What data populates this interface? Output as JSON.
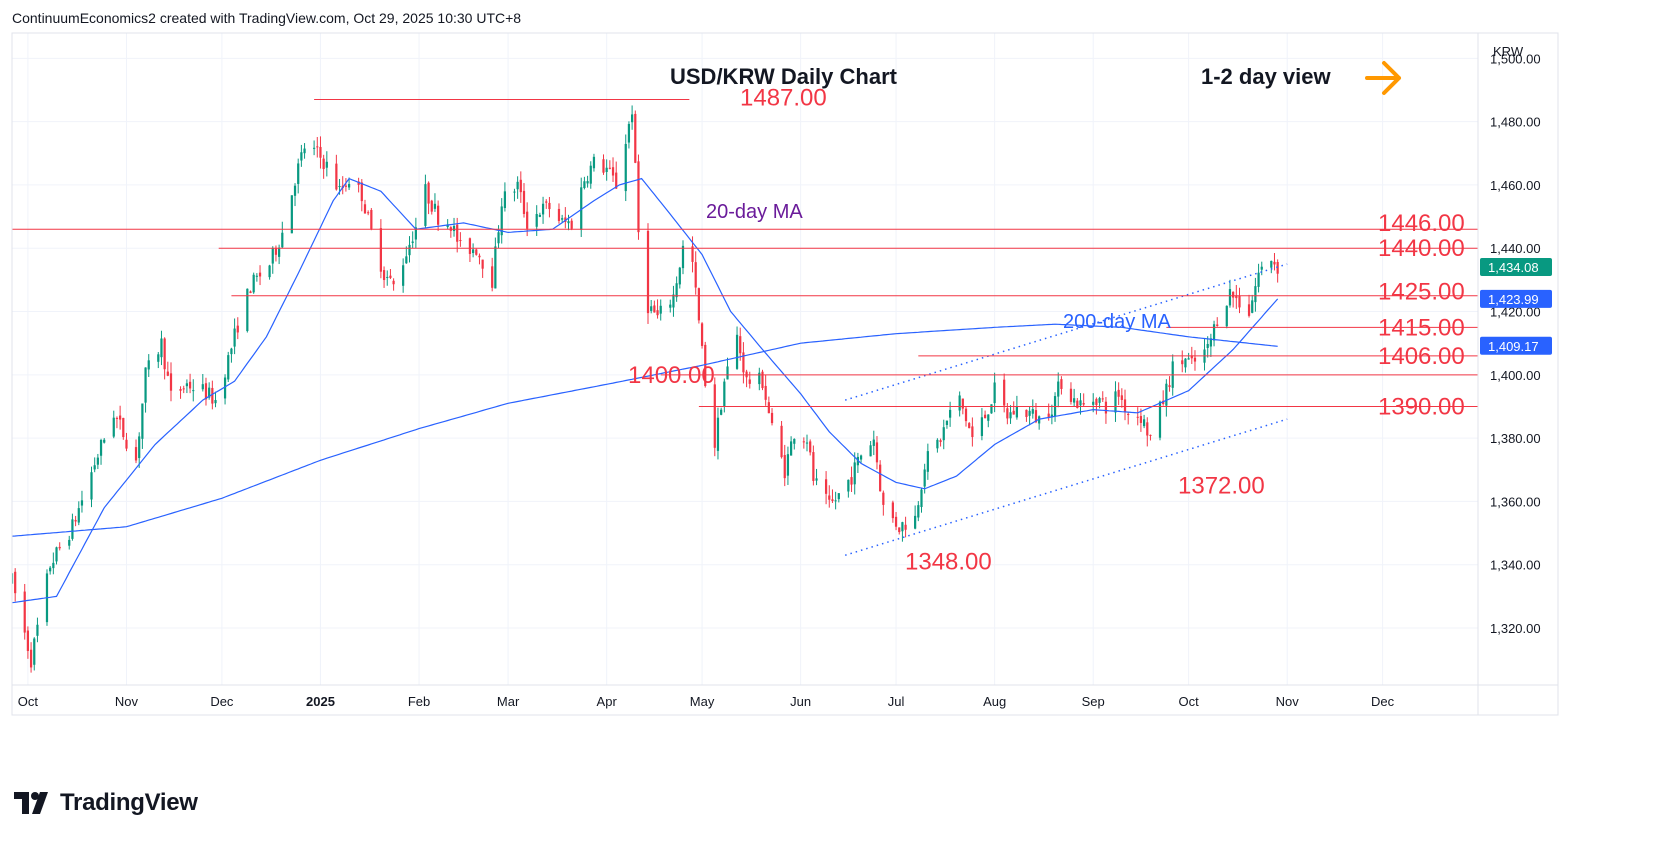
{
  "header": "ContinuumEconomics2 created with TradingView.com, Oct 29, 2025 10:30 UTC+8",
  "logo_text": "TradingView",
  "currency": "KRW",
  "chart_data": {
    "type": "candlestick",
    "title": "USD/KRW Daily Chart",
    "subtitle": "1-2 day view",
    "view_arrow": "right",
    "grid": true,
    "ylim": [
      1302,
      1508
    ],
    "y_ticks": [
      1320,
      1340,
      1360,
      1380,
      1400,
      1420,
      1440,
      1460,
      1480,
      1500
    ],
    "y_tick_labels": [
      "1,320.00",
      "1,340.00",
      "1,360.00",
      "1,380.00",
      "1,400.00",
      "1,420.00",
      "1,440.00",
      "1,460.00",
      "1,480.00",
      "1,500.00"
    ],
    "x_start": "2024-09-26",
    "x_end": "2025-12-31",
    "x_ticks": [
      {
        "date": "2024-10-01",
        "label": "Oct"
      },
      {
        "date": "2024-11-01",
        "label": "Nov"
      },
      {
        "date": "2024-12-01",
        "label": "Dec"
      },
      {
        "date": "2025-01-01",
        "label": "2025",
        "bold": true
      },
      {
        "date": "2025-02-01",
        "label": "Feb"
      },
      {
        "date": "2025-03-01",
        "label": "Mar"
      },
      {
        "date": "2025-04-01",
        "label": "Apr"
      },
      {
        "date": "2025-05-01",
        "label": "May"
      },
      {
        "date": "2025-06-01",
        "label": "Jun"
      },
      {
        "date": "2025-07-01",
        "label": "Jul"
      },
      {
        "date": "2025-08-01",
        "label": "Aug"
      },
      {
        "date": "2025-09-01",
        "label": "Sep"
      },
      {
        "date": "2025-10-01",
        "label": "Oct"
      },
      {
        "date": "2025-11-01",
        "label": "Nov"
      },
      {
        "date": "2025-12-01",
        "label": "Dec"
      }
    ],
    "price_anchors": [
      [
        "2024-09-26",
        1335
      ],
      [
        "2024-10-02",
        1310
      ],
      [
        "2024-10-08",
        1340
      ],
      [
        "2024-10-15",
        1352
      ],
      [
        "2024-10-22",
        1372
      ],
      [
        "2024-10-28",
        1388
      ],
      [
        "2024-11-04",
        1373
      ],
      [
        "2024-11-07",
        1400
      ],
      [
        "2024-11-12",
        1410
      ],
      [
        "2024-11-15",
        1393
      ],
      [
        "2024-11-20",
        1397
      ],
      [
        "2024-11-25",
        1395
      ],
      [
        "2024-11-29",
        1392
      ],
      [
        "2024-12-03",
        1405
      ],
      [
        "2024-12-06",
        1416
      ],
      [
        "2024-12-10",
        1428
      ],
      [
        "2024-12-16",
        1435
      ],
      [
        "2024-12-20",
        1445
      ],
      [
        "2024-12-24",
        1462
      ],
      [
        "2024-12-27",
        1472
      ],
      [
        "2024-12-31",
        1470
      ],
      [
        "2025-01-03",
        1466
      ],
      [
        "2025-01-07",
        1458
      ],
      [
        "2025-01-10",
        1462
      ],
      [
        "2025-01-14",
        1457
      ],
      [
        "2025-01-17",
        1445
      ],
      [
        "2025-01-21",
        1432
      ],
      [
        "2025-01-24",
        1428
      ],
      [
        "2025-01-31",
        1447
      ],
      [
        "2025-02-03",
        1458
      ],
      [
        "2025-02-07",
        1450
      ],
      [
        "2025-02-11",
        1448
      ],
      [
        "2025-02-14",
        1440
      ],
      [
        "2025-02-19",
        1440
      ],
      [
        "2025-02-24",
        1430
      ],
      [
        "2025-02-27",
        1455
      ],
      [
        "2025-03-04",
        1460
      ],
      [
        "2025-03-07",
        1448
      ],
      [
        "2025-03-11",
        1452
      ],
      [
        "2025-03-14",
        1453
      ],
      [
        "2025-03-18",
        1448
      ],
      [
        "2025-03-21",
        1448
      ],
      [
        "2025-03-25",
        1462
      ],
      [
        "2025-03-28",
        1467
      ],
      [
        "2025-04-01",
        1465
      ],
      [
        "2025-04-04",
        1460
      ],
      [
        "2025-04-07",
        1474
      ],
      [
        "2025-04-09",
        1484
      ],
      [
        "2025-04-11",
        1445
      ],
      [
        "2025-04-14",
        1422
      ],
      [
        "2025-04-17",
        1418
      ],
      [
        "2025-04-22",
        1425
      ],
      [
        "2025-04-25",
        1440
      ],
      [
        "2025-04-28",
        1435
      ],
      [
        "2025-05-02",
        1398
      ],
      [
        "2025-05-05",
        1378
      ],
      [
        "2025-05-08",
        1398
      ],
      [
        "2025-05-12",
        1412
      ],
      [
        "2025-05-15",
        1398
      ],
      [
        "2025-05-20",
        1398
      ],
      [
        "2025-05-23",
        1383
      ],
      [
        "2025-05-27",
        1370
      ],
      [
        "2025-05-30",
        1382
      ],
      [
        "2025-06-03",
        1380
      ],
      [
        "2025-06-05",
        1367
      ],
      [
        "2025-06-10",
        1358
      ],
      [
        "2025-06-13",
        1362
      ],
      [
        "2025-06-17",
        1368
      ],
      [
        "2025-06-20",
        1375
      ],
      [
        "2025-06-24",
        1380
      ],
      [
        "2025-06-27",
        1358
      ],
      [
        "2025-07-02",
        1352
      ],
      [
        "2025-07-07",
        1355
      ],
      [
        "2025-07-10",
        1372
      ],
      [
        "2025-07-15",
        1380
      ],
      [
        "2025-07-18",
        1388
      ],
      [
        "2025-07-21",
        1392
      ],
      [
        "2025-07-25",
        1380
      ],
      [
        "2025-07-29",
        1387
      ],
      [
        "2025-08-01",
        1395
      ],
      [
        "2025-08-05",
        1387
      ],
      [
        "2025-08-08",
        1389
      ],
      [
        "2025-08-12",
        1388
      ],
      [
        "2025-08-15",
        1386
      ],
      [
        "2025-08-19",
        1390
      ],
      [
        "2025-08-22",
        1398
      ],
      [
        "2025-08-26",
        1392
      ],
      [
        "2025-08-29",
        1390
      ],
      [
        "2025-09-02",
        1393
      ],
      [
        "2025-09-05",
        1390
      ],
      [
        "2025-09-09",
        1394
      ],
      [
        "2025-09-12",
        1388
      ],
      [
        "2025-09-16",
        1387
      ],
      [
        "2025-09-19",
        1380
      ],
      [
        "2025-09-23",
        1392
      ],
      [
        "2025-09-26",
        1402
      ],
      [
        "2025-09-30",
        1405
      ],
      [
        "2025-10-02",
        1403
      ],
      [
        "2025-10-07",
        1408
      ],
      [
        "2025-10-10",
        1418
      ],
      [
        "2025-10-14",
        1426
      ],
      [
        "2025-10-16",
        1424
      ],
      [
        "2025-10-20",
        1420
      ],
      [
        "2025-10-23",
        1432
      ],
      [
        "2025-10-27",
        1437
      ],
      [
        "2025-10-29",
        1434
      ]
    ],
    "ma20_anchors": [
      [
        "2024-09-26",
        1328
      ],
      [
        "2024-10-10",
        1330
      ],
      [
        "2024-10-25",
        1358
      ],
      [
        "2024-11-10",
        1378
      ],
      [
        "2024-11-25",
        1392
      ],
      [
        "2024-12-05",
        1398
      ],
      [
        "2024-12-15",
        1412
      ],
      [
        "2024-12-25",
        1432
      ],
      [
        "2025-01-05",
        1455
      ],
      [
        "2025-01-10",
        1462
      ],
      [
        "2025-01-20",
        1458
      ],
      [
        "2025-01-31",
        1446
      ],
      [
        "2025-02-15",
        1448
      ],
      [
        "2025-03-01",
        1445
      ],
      [
        "2025-03-15",
        1446
      ],
      [
        "2025-03-28",
        1455
      ],
      [
        "2025-04-05",
        1460
      ],
      [
        "2025-04-12",
        1462
      ],
      [
        "2025-04-20",
        1452
      ],
      [
        "2025-05-01",
        1438
      ],
      [
        "2025-05-10",
        1420
      ],
      [
        "2025-05-20",
        1408
      ],
      [
        "2025-06-01",
        1394
      ],
      [
        "2025-06-10",
        1382
      ],
      [
        "2025-06-20",
        1372
      ],
      [
        "2025-07-01",
        1366
      ],
      [
        "2025-07-10",
        1364
      ],
      [
        "2025-07-20",
        1368
      ],
      [
        "2025-08-01",
        1378
      ],
      [
        "2025-08-15",
        1386
      ],
      [
        "2025-09-01",
        1389
      ],
      [
        "2025-09-15",
        1388
      ],
      [
        "2025-10-01",
        1395
      ],
      [
        "2025-10-15",
        1408
      ],
      [
        "2025-10-29",
        1424
      ]
    ],
    "ma200_anchors": [
      [
        "2024-09-26",
        1349
      ],
      [
        "2024-11-01",
        1352
      ],
      [
        "2024-12-01",
        1361
      ],
      [
        "2025-01-01",
        1373
      ],
      [
        "2025-02-01",
        1383
      ],
      [
        "2025-03-01",
        1391
      ],
      [
        "2025-04-01",
        1397
      ],
      [
        "2025-05-01",
        1403
      ],
      [
        "2025-06-01",
        1410
      ],
      [
        "2025-07-01",
        1413
      ],
      [
        "2025-08-01",
        1415
      ],
      [
        "2025-08-20",
        1416
      ],
      [
        "2025-09-10",
        1415
      ],
      [
        "2025-10-01",
        1412
      ],
      [
        "2025-10-29",
        1409
      ]
    ],
    "levels": [
      {
        "value": 1487,
        "label": "1487.00",
        "x_from": "2024-12-30",
        "x_to": "2025-04-27"
      },
      {
        "value": 1446,
        "label": "1446.00",
        "x_from": "2024-09-26",
        "x_to": "2025-12-31"
      },
      {
        "value": 1440,
        "label": "1440.00",
        "x_from": "2024-11-30",
        "x_to": "2025-12-31"
      },
      {
        "value": 1425,
        "label": "1425.00",
        "x_from": "2024-12-04",
        "x_to": "2025-12-31"
      },
      {
        "value": 1415,
        "label": "1415.00",
        "x_from": "2025-09-24",
        "x_to": "2025-12-31"
      },
      {
        "value": 1406,
        "label": "1406.00",
        "x_from": "2025-07-08",
        "x_to": "2025-12-31"
      },
      {
        "value": 1400,
        "label": "1400.00",
        "x_from": "2025-04-18",
        "x_to": "2025-12-31"
      },
      {
        "value": 1390,
        "label": "1390.00",
        "x_from": "2025-04-30",
        "x_to": "2025-12-31"
      }
    ],
    "annotations": [
      {
        "text": "1372.00",
        "date": "2025-09-19",
        "value": 1372
      },
      {
        "text": "1348.00",
        "date": "2025-06-27",
        "value": 1348
      }
    ],
    "channel_lines": [
      {
        "from": [
          "2025-06-15",
          1343
        ],
        "to": [
          "2025-11-01",
          1386
        ]
      },
      {
        "from": [
          "2025-06-15",
          1392
        ],
        "to": [
          "2025-11-01",
          1435
        ]
      }
    ],
    "series": [
      {
        "name": "20-day MA",
        "color": "#2962ff"
      },
      {
        "name": "200-day MA",
        "color": "#2962ff"
      }
    ],
    "ma20_label_color": "#6a1b9a",
    "ma200_label_color": "#2962ff",
    "price_tags": [
      {
        "label": "1,434.08",
        "value": 1434.08,
        "color": "#089981"
      },
      {
        "label": "1,423.99",
        "value": 1423.99,
        "color": "#2962ff"
      },
      {
        "label": "1,409.17",
        "value": 1409.17,
        "color": "#2962ff"
      }
    ],
    "up_color": "#089981",
    "down_color": "#f23645",
    "level_color": "#f23645",
    "arrow_color": "#ff9800"
  }
}
